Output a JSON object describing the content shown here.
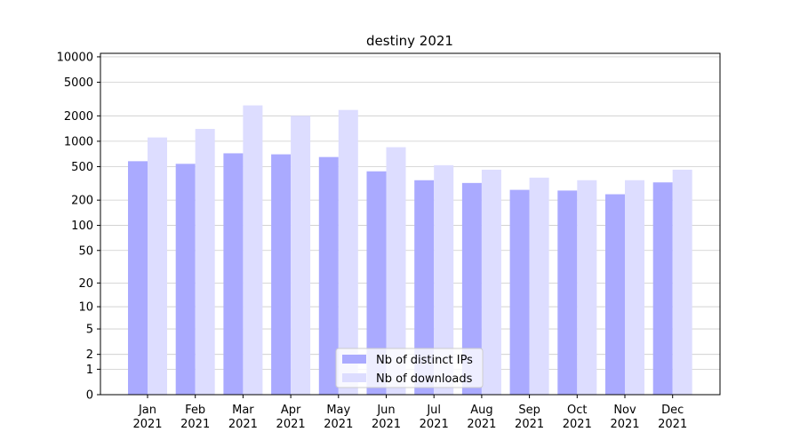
{
  "chart_data": {
    "type": "bar",
    "title": "destiny 2021",
    "categories": [
      "Jan 2021",
      "Feb 2021",
      "Mar 2021",
      "Apr 2021",
      "May 2021",
      "Jun 2021",
      "Jul 2021",
      "Aug 2021",
      "Sep 2021",
      "Oct 2021",
      "Nov 2021",
      "Dec 2021"
    ],
    "series": [
      {
        "name": "Nb of distinct IPs",
        "color": "#aaaaff",
        "values": [
          580,
          540,
          720,
          700,
          650,
          440,
          345,
          320,
          265,
          260,
          235,
          325
        ]
      },
      {
        "name": "Nb of downloads",
        "color": "#ddddff",
        "values": [
          1110,
          1400,
          2660,
          2000,
          2350,
          850,
          520,
          460,
          370,
          345,
          345,
          460
        ]
      }
    ],
    "yscale": "log1p",
    "ylim": [
      0,
      11000
    ],
    "yticks": [
      0,
      1,
      2,
      5,
      10,
      20,
      50,
      100,
      200,
      500,
      1000,
      2000,
      5000,
      10000
    ],
    "grid": true,
    "legend": "lower center"
  }
}
